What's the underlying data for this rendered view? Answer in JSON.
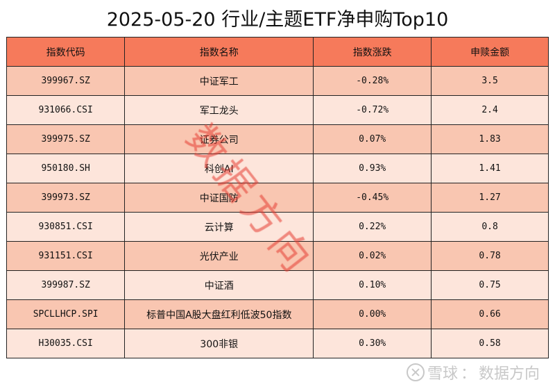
{
  "title": "2025-05-20 行业/主题ETF净申购Top10",
  "headers": [
    "指数代码",
    "指数名称",
    "指数涨跌",
    "申赎金额"
  ],
  "rows": [
    [
      "399967.SZ",
      "中证军工",
      "-0.28%",
      "3.5"
    ],
    [
      "931066.CSI",
      "军工龙头",
      "-0.72%",
      "2.4"
    ],
    [
      "399975.SZ",
      "证券公司",
      "0.07%",
      "1.83"
    ],
    [
      "950180.SH",
      "科创AI",
      "0.93%",
      "1.41"
    ],
    [
      "399973.SZ",
      "中证国防",
      "-0.45%",
      "1.27"
    ],
    [
      "930851.CSI",
      "云计算",
      "0.22%",
      "0.8"
    ],
    [
      "931151.CSI",
      "光伏产业",
      "0.02%",
      "0.78"
    ],
    [
      "399987.SZ",
      "中证酒",
      "0.10%",
      "0.75"
    ],
    [
      "SPCLLHCP.SPI",
      "标普中国A股大盘红利低波50指数",
      "0.00%",
      "0.66"
    ],
    [
      "H30035.CSI",
      "300非银",
      "0.30%",
      "0.58"
    ]
  ],
  "watermark": "数据方向",
  "footer": {
    "brand": "雪球",
    "separator": "：",
    "author": "数据方向"
  },
  "colors": {
    "header": "#f67a5b",
    "row_odd": "#f9c6b1",
    "row_even": "#fde5db",
    "watermark": "#e63c32"
  }
}
